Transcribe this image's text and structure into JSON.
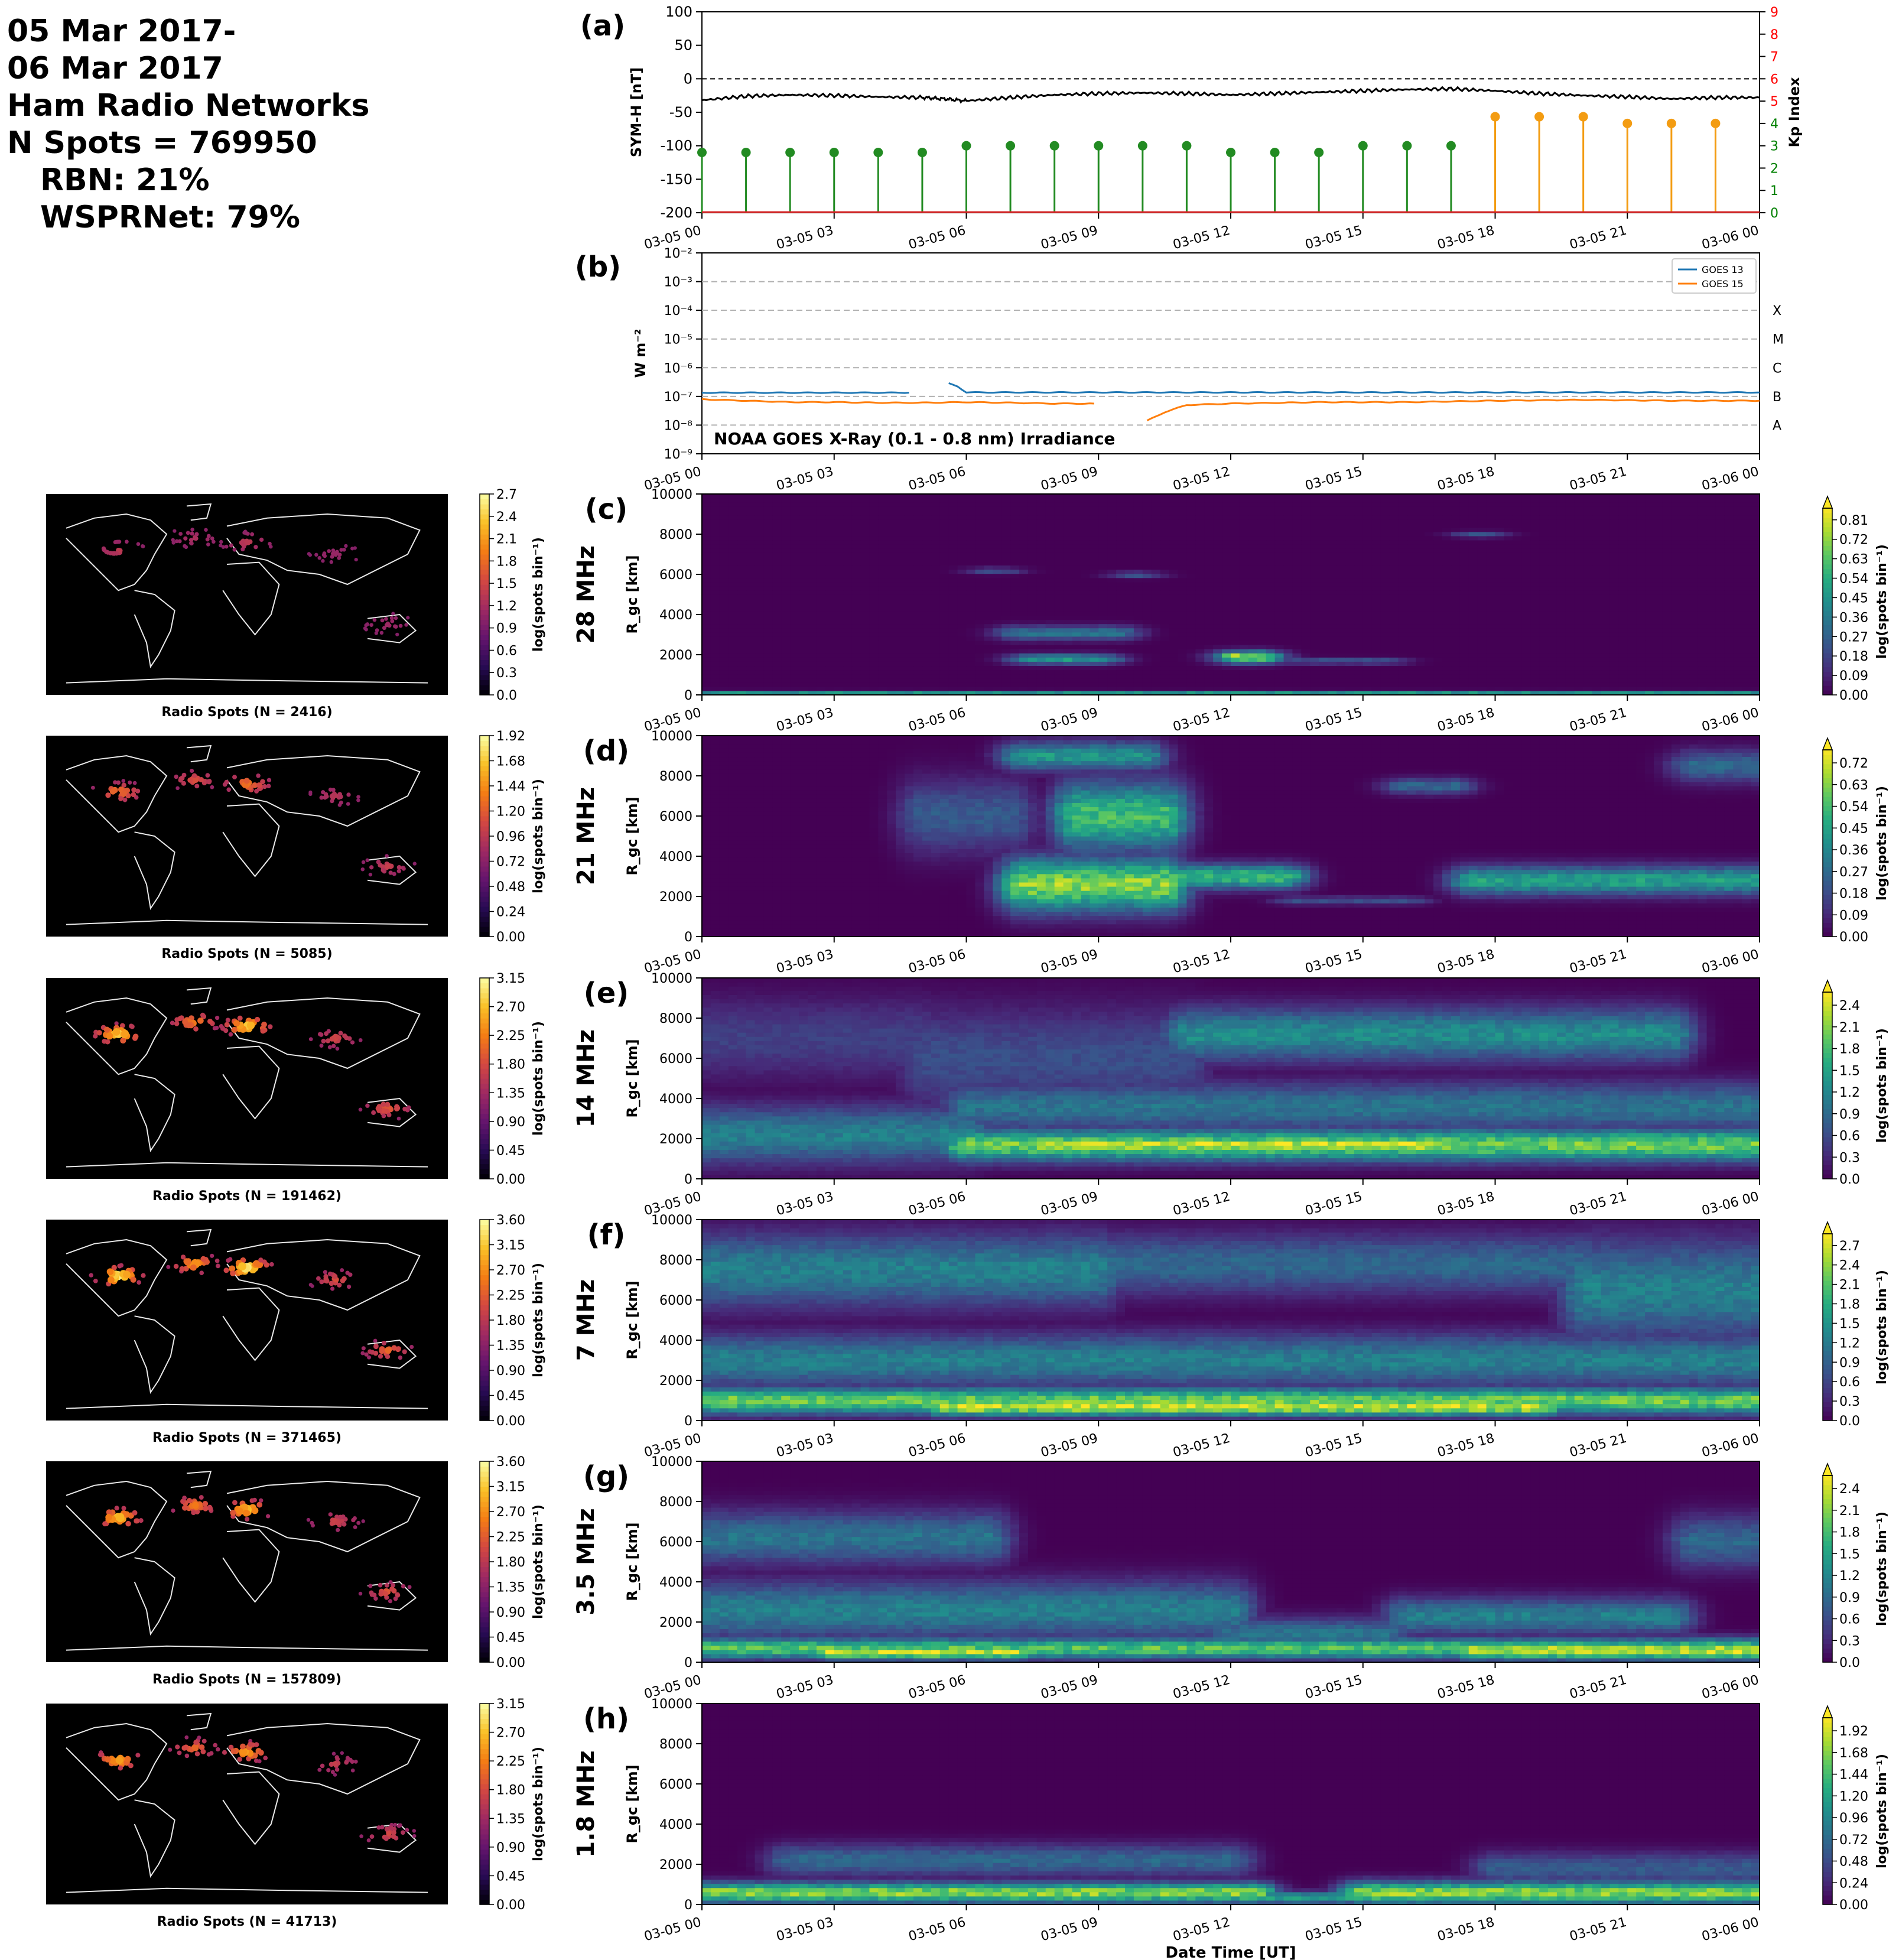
{
  "header": {
    "line1": "05 Mar 2017-",
    "line2": "06 Mar 2017",
    "line3": "Ham Radio Networks",
    "line4": "N Spots = 769950",
    "line5": "RBN: 21%",
    "line6": "WSPRNet: 79%"
  },
  "x_time_ticks": [
    "03-05 00",
    "03-05 03",
    "03-05 06",
    "03-05 09",
    "03-05 12",
    "03-05 15",
    "03-05 18",
    "03-05 21",
    "03-06 00"
  ],
  "xlabel": "Date Time [UT]",
  "chart_data": [
    {
      "panel": "(a)",
      "type": "line",
      "ylabel": "SYM-H [nT]",
      "ylim": [
        -200,
        100
      ],
      "yticks": [
        100,
        50,
        0,
        -50,
        -100,
        -150,
        -200
      ],
      "zero_line": "dashed",
      "series": [
        {
          "name": "SYM-H",
          "color": "#000000",
          "x_hours": [
            0,
            1,
            2,
            3,
            4,
            5,
            5.5,
            6,
            7,
            8,
            9,
            10,
            11,
            12,
            13,
            14,
            15,
            16,
            17,
            18,
            19,
            20,
            21,
            22,
            23,
            24
          ],
          "values": [
            -32,
            -26,
            -24,
            -25,
            -27,
            -28,
            -30,
            -33,
            -28,
            -24,
            -22,
            -21,
            -22,
            -24,
            -22,
            -20,
            -18,
            -16,
            -15,
            -18,
            -22,
            -25,
            -27,
            -30,
            -28,
            -28
          ]
        }
      ],
      "right_axis": {
        "label": "Kp Index",
        "ylim": [
          0,
          9
        ],
        "ticks": [
          "0",
          "1",
          "2",
          "3",
          "4",
          "5",
          "6",
          "7",
          "8",
          "9"
        ],
        "tick_colors": [
          "#008000",
          "#008000",
          "#008000",
          "#008000",
          "#008000",
          "#ff0000",
          "#ff0000",
          "#ff0000",
          "#ff0000",
          "#ff0000"
        ],
        "kp": {
          "x_hours": [
            0,
            1,
            2,
            3,
            4,
            5,
            6,
            7,
            8,
            9,
            10,
            11,
            12,
            13,
            14,
            15,
            16,
            17,
            18,
            19,
            20,
            21,
            22,
            23
          ],
          "values": [
            2.7,
            2.7,
            2.7,
            2.7,
            2.7,
            2.7,
            3.0,
            3.0,
            3.0,
            3.0,
            3.0,
            3.0,
            2.7,
            2.7,
            2.7,
            3.0,
            3.0,
            3.0,
            4.3,
            4.3,
            4.3,
            4.0,
            4.0,
            4.0
          ],
          "colors": [
            "#228b22",
            "#228b22",
            "#228b22",
            "#228b22",
            "#228b22",
            "#228b22",
            "#228b22",
            "#228b22",
            "#228b22",
            "#228b22",
            "#228b22",
            "#228b22",
            "#228b22",
            "#228b22",
            "#228b22",
            "#228b22",
            "#228b22",
            "#228b22",
            "#f39c12",
            "#f39c12",
            "#f39c12",
            "#f39c12",
            "#f39c12",
            "#f39c12"
          ]
        }
      }
    },
    {
      "panel": "(b)",
      "type": "line",
      "ylabel": "W m⁻²",
      "ytick_labels": [
        "10⁻²",
        "10⁻³",
        "10⁻⁴",
        "10⁻⁵",
        "10⁻⁶",
        "10⁻⁷",
        "10⁻⁸",
        "10⁻⁹"
      ],
      "ylim_log10": [
        -9,
        -2
      ],
      "flare_classes": [
        "X",
        "M",
        "C",
        "B",
        "A"
      ],
      "annotation": "NOAA GOES X-Ray (0.1 - 0.8 nm) Irradiance",
      "legend": "top-right",
      "series": [
        {
          "name": "GOES 13",
          "color": "#1f77b4",
          "x_hours": [
            0,
            4.7,
            5.5,
            5.6,
            5.8,
            6.0,
            7,
            8,
            9,
            10,
            12,
            14,
            16,
            18,
            20,
            22,
            24
          ],
          "log10_values": [
            -6.87,
            -6.87,
            null,
            -6.55,
            -6.65,
            -6.86,
            -6.86,
            -6.86,
            -6.86,
            -6.86,
            -6.86,
            -6.86,
            -6.86,
            -6.86,
            -6.86,
            -6.86,
            -6.86
          ]
        },
        {
          "name": "GOES 15",
          "color": "#ff7f0e",
          "x_hours": [
            0,
            1,
            2,
            3,
            4,
            5,
            6,
            7,
            8,
            8.9,
            9.0,
            10.0,
            10.1,
            10.5,
            11,
            12,
            14,
            16,
            18,
            20,
            22,
            24
          ],
          "log10_values": [
            -7.1,
            -7.15,
            -7.2,
            -7.2,
            -7.22,
            -7.22,
            -7.2,
            -7.22,
            -7.25,
            -7.25,
            null,
            null,
            -7.85,
            -7.55,
            -7.3,
            -7.25,
            -7.2,
            -7.2,
            -7.15,
            -7.12,
            -7.15,
            -7.15
          ]
        }
      ]
    },
    {
      "panel": "(c)",
      "band": "28 MHz",
      "type": "heatmap",
      "ylabel": "R_gc [km]",
      "ylim": [
        0,
        10000
      ],
      "colorbar_ticks": [
        "0.81",
        "0.72",
        "0.63",
        "0.54",
        "0.45",
        "0.36",
        "0.27",
        "0.18",
        "0.09",
        "0.00"
      ],
      "map": {
        "caption": "Radio Spots (N = 2416)",
        "colorbar_ticks": [
          "2.7",
          "2.4",
          "2.1",
          "1.8",
          "1.5",
          "1.2",
          "0.9",
          "0.6",
          "0.3",
          "0.0"
        ]
      },
      "blobs": [
        {
          "t": 0,
          "t2": 24,
          "r": 80,
          "dr": 120,
          "v": 0.55
        },
        {
          "t": 7.5,
          "t2": 9.0,
          "r": 1800,
          "dr": 250,
          "v": 0.55
        },
        {
          "t": 7.2,
          "t2": 9.4,
          "r": 3100,
          "dr": 350,
          "v": 0.4
        },
        {
          "t": 12.2,
          "t2": 12.6,
          "r": 1900,
          "dr": 300,
          "v": 0.9
        },
        {
          "t": 13.5,
          "t2": 15.5,
          "r": 1700,
          "dr": 150,
          "v": 0.3
        },
        {
          "t": 6.6,
          "t2": 6.7,
          "r": 6200,
          "dr": 150,
          "v": 0.3
        },
        {
          "t": 9.8,
          "t2": 9.9,
          "r": 6000,
          "dr": 150,
          "v": 0.3
        },
        {
          "t": 17.6,
          "t2": 17.7,
          "r": 8000,
          "dr": 150,
          "v": 0.3
        }
      ]
    },
    {
      "panel": "(d)",
      "band": "21 MHz",
      "type": "heatmap",
      "ylabel": "R_gc [km]",
      "ylim": [
        0,
        10000
      ],
      "colorbar_ticks": [
        "0.72",
        "0.63",
        "0.54",
        "0.45",
        "0.36",
        "0.27",
        "0.18",
        "0.09",
        "0.00"
      ],
      "map": {
        "caption": "Radio Spots (N = 5085)",
        "colorbar_ticks": [
          "1.92",
          "1.68",
          "1.44",
          "1.20",
          "0.96",
          "0.72",
          "0.48",
          "0.24",
          "0.00"
        ]
      },
      "blobs": [
        {
          "t": 7.3,
          "t2": 10.5,
          "r": 2600,
          "dr": 1300,
          "v": 0.85
        },
        {
          "t": 10.5,
          "t2": 13.2,
          "r": 3000,
          "dr": 600,
          "v": 0.7
        },
        {
          "t": 8.5,
          "t2": 10.5,
          "r": 6000,
          "dr": 1700,
          "v": 0.7
        },
        {
          "t": 7.3,
          "t2": 10.0,
          "r": 9000,
          "dr": 700,
          "v": 0.55
        },
        {
          "t": 17.5,
          "t2": 23.8,
          "r": 2800,
          "dr": 700,
          "v": 0.6
        },
        {
          "t": 5.0,
          "t2": 7.0,
          "r": 6000,
          "dr": 1800,
          "v": 0.3
        },
        {
          "t": 16.0,
          "t2": 17.0,
          "r": 7500,
          "dr": 400,
          "v": 0.35
        },
        {
          "t": 22.5,
          "t2": 24.0,
          "r": 8500,
          "dr": 800,
          "v": 0.35
        },
        {
          "t": 13.5,
          "t2": 16.0,
          "r": 1800,
          "dr": 200,
          "v": 0.25
        }
      ]
    },
    {
      "panel": "(e)",
      "band": "14 MHz",
      "type": "heatmap",
      "ylabel": "R_gc [km]",
      "ylim": [
        0,
        10000
      ],
      "colorbar_ticks": [
        "2.4",
        "2.1",
        "1.8",
        "1.5",
        "1.2",
        "0.9",
        "0.6",
        "0.3",
        "0.0"
      ],
      "map": {
        "caption": "Radio Spots (N = 191462)",
        "colorbar_ticks": [
          "3.15",
          "2.70",
          "2.25",
          "1.80",
          "1.35",
          "0.90",
          "0.45",
          "0.00"
        ]
      },
      "blobs": [
        {
          "t": 0,
          "t2": 6.0,
          "r": 2200,
          "dr": 1400,
          "v": 0.45
        },
        {
          "t": 6.0,
          "t2": 24,
          "r": 1700,
          "dr": 800,
          "v": 0.8
        },
        {
          "t": 8.0,
          "t2": 16.5,
          "r": 1700,
          "dr": 400,
          "v": 0.95
        },
        {
          "t": 6.0,
          "t2": 24,
          "r": 3600,
          "dr": 1200,
          "v": 0.4
        },
        {
          "t": 11.0,
          "t2": 22.0,
          "r": 7200,
          "dr": 1300,
          "v": 0.5
        },
        {
          "t": 0,
          "t2": 5.0,
          "r": 7000,
          "dr": 2000,
          "v": 0.2
        },
        {
          "t": 5.0,
          "t2": 11.0,
          "r": 6000,
          "dr": 2500,
          "v": 0.25
        }
      ]
    },
    {
      "panel": "(f)",
      "band": "7 MHz",
      "type": "heatmap",
      "ylabel": "R_gc [km]",
      "ylim": [
        0,
        10000
      ],
      "colorbar_ticks": [
        "2.7",
        "2.4",
        "2.1",
        "1.8",
        "1.5",
        "1.2",
        "0.9",
        "0.6",
        "0.3",
        "0.0"
      ],
      "map": {
        "caption": "Radio Spots (N = 371465)",
        "colorbar_ticks": [
          "3.60",
          "3.15",
          "2.70",
          "2.25",
          "1.80",
          "1.35",
          "0.90",
          "0.45",
          "0.00"
        ]
      },
      "blobs": [
        {
          "t": 0,
          "t2": 24,
          "r": 1000,
          "dr": 650,
          "v": 0.8
        },
        {
          "t": 5.5,
          "t2": 19.0,
          "r": 700,
          "dr": 450,
          "v": 0.95
        },
        {
          "t": 0,
          "t2": 24,
          "r": 3000,
          "dr": 1300,
          "v": 0.45
        },
        {
          "t": 0,
          "t2": 9.0,
          "r": 7500,
          "dr": 1800,
          "v": 0.45
        },
        {
          "t": 9.0,
          "t2": 20.0,
          "r": 7800,
          "dr": 1500,
          "v": 0.35
        },
        {
          "t": 20.0,
          "t2": 24.0,
          "r": 6500,
          "dr": 2500,
          "v": 0.45
        }
      ]
    },
    {
      "panel": "(g)",
      "band": "3.5 MHz",
      "type": "heatmap",
      "ylabel": "R_gc [km]",
      "ylim": [
        0,
        10000
      ],
      "colorbar_ticks": [
        "2.4",
        "2.1",
        "1.8",
        "1.5",
        "1.2",
        "0.9",
        "0.6",
        "0.3",
        "0.0"
      ],
      "map": {
        "caption": "Radio Spots (N = 157809)",
        "colorbar_ticks": [
          "3.60",
          "3.15",
          "2.70",
          "2.25",
          "1.80",
          "1.35",
          "0.90",
          "0.45",
          "0.00"
        ]
      },
      "blobs": [
        {
          "t": 0,
          "t2": 24,
          "r": 700,
          "dr": 500,
          "v": 0.75
        },
        {
          "t": 3.0,
          "t2": 7.0,
          "r": 500,
          "dr": 350,
          "v": 0.95
        },
        {
          "t": 17.5,
          "t2": 24.0,
          "r": 600,
          "dr": 450,
          "v": 0.95
        },
        {
          "t": 0,
          "t2": 12.0,
          "r": 2600,
          "dr": 1400,
          "v": 0.45
        },
        {
          "t": 12.0,
          "t2": 15.5,
          "r": 1400,
          "dr": 800,
          "v": 0.4
        },
        {
          "t": 16.0,
          "t2": 22.0,
          "r": 2300,
          "dr": 900,
          "v": 0.45
        },
        {
          "t": 0,
          "t2": 6.5,
          "r": 6200,
          "dr": 1300,
          "v": 0.4
        },
        {
          "t": 22.5,
          "t2": 24.0,
          "r": 6000,
          "dr": 1300,
          "v": 0.35
        }
      ]
    },
    {
      "panel": "(h)",
      "band": "1.8 MHz",
      "type": "heatmap",
      "ylabel": "R_gc [km]",
      "ylim": [
        0,
        10000
      ],
      "colorbar_ticks": [
        "1.92",
        "1.68",
        "1.44",
        "1.20",
        "0.96",
        "0.72",
        "0.48",
        "0.24",
        "0.00"
      ],
      "map": {
        "caption": "Radio Spots (N = 41713)",
        "colorbar_ticks": [
          "3.15",
          "2.70",
          "2.25",
          "1.80",
          "1.35",
          "0.90",
          "0.45",
          "0.00"
        ]
      },
      "blobs": [
        {
          "t": 0,
          "t2": 12.5,
          "r": 600,
          "dr": 500,
          "v": 0.85
        },
        {
          "t": 12.5,
          "t2": 15.0,
          "r": 350,
          "dr": 300,
          "v": 0.6
        },
        {
          "t": 15.0,
          "t2": 24.0,
          "r": 600,
          "dr": 550,
          "v": 0.85
        },
        {
          "t": 2.0,
          "t2": 12.0,
          "r": 2200,
          "dr": 800,
          "v": 0.35
        },
        {
          "t": 18.0,
          "t2": 24.0,
          "r": 1800,
          "dr": 800,
          "v": 0.3
        }
      ]
    }
  ]
}
